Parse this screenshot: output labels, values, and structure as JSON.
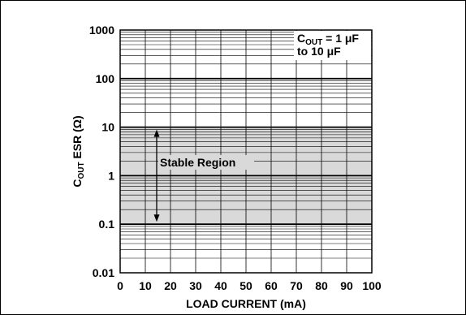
{
  "chart_data": {
    "type": "area",
    "title": "",
    "xlabel": "LOAD CURRENT (mA)",
    "ylabel_parts": {
      "base": "C",
      "sub": "OUT",
      "rest": " ESR (Ω)"
    },
    "x_ticks": [
      "0",
      "10",
      "20",
      "30",
      "40",
      "50",
      "60",
      "70",
      "80",
      "90",
      "100"
    ],
    "y_ticks": [
      "0.01",
      "0.1",
      "1",
      "10",
      "100",
      "1000"
    ],
    "xlim": [
      0,
      100
    ],
    "ylim": [
      0.01,
      1000
    ],
    "y_scale": "log",
    "grid": true,
    "stable_region": {
      "x": [
        0,
        100
      ],
      "y_min": 0.1,
      "y_max": 10
    },
    "annotations": {
      "region_label": "Stable Region",
      "cout_line1_base": "C",
      "cout_line1_sub": "OUT",
      "cout_line1_rest": " = 1 μF",
      "cout_line2": "to 10 μF"
    },
    "colors": {
      "region_fill": "#d9d9d9",
      "grid": "#000000"
    }
  }
}
